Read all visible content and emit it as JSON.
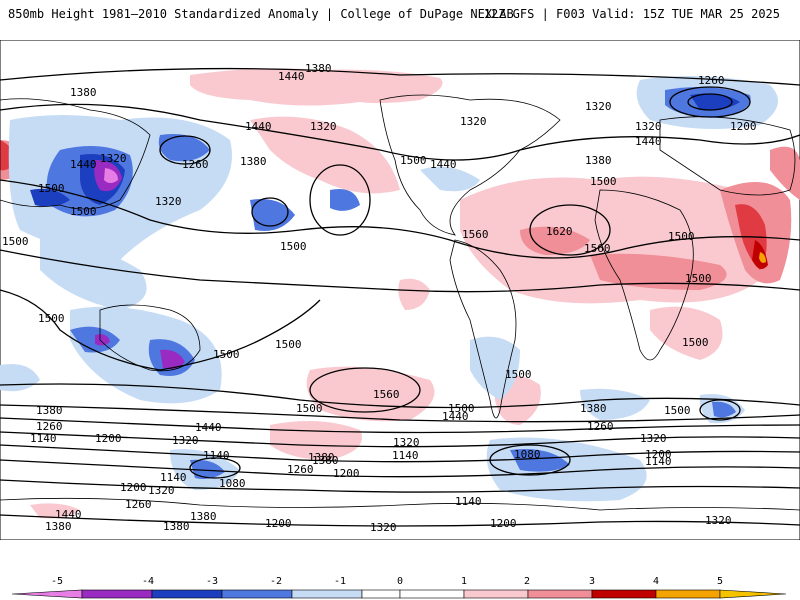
{
  "header": {
    "left_title": "850mb Height 1981–2010 Standardized Anomaly | College of DuPage NEXLAB",
    "right_title": "12Z GFS | F003 Valid: 15Z TUE MAR 25 2025"
  },
  "colors": {
    "neg5": "#e67ee6",
    "neg4": "#9a2bc2",
    "neg3": "#1c3fbf",
    "neg2": "#4f77e0",
    "neg1": "#c6dcf5",
    "pos1": "#f9c9cf",
    "pos2": "#f08f97",
    "pos3": "#e03a43",
    "pos4": "#c00000",
    "pos5": "#f5a300",
    "coast": "#000000"
  },
  "colorbar": {
    "ticks": [
      "-5",
      "-4",
      "-3",
      "-2",
      "-1",
      "0",
      "1",
      "2",
      "3",
      "4",
      "5"
    ]
  },
  "contour_labels": [
    "1380",
    "1440",
    "1380",
    "1440",
    "1320",
    "1440",
    "1500",
    "1320",
    "1260",
    "1380",
    "1500",
    "1320",
    "1500",
    "1440",
    "1500",
    "1500",
    "1560",
    "1620",
    "1560",
    "1500",
    "1500",
    "1500",
    "1440",
    "1320",
    "1260",
    "1200",
    "1320",
    "1500",
    "1380",
    "1500",
    "1500",
    "1500",
    "1560",
    "1500",
    "1440",
    "1440",
    "1380",
    "1260",
    "1140",
    "1200",
    "1320",
    "1380",
    "1320",
    "1200",
    "1140",
    "1260",
    "1380",
    "1320",
    "1200",
    "1140",
    "1140",
    "1080",
    "1200",
    "1320",
    "1260",
    "1380",
    "1440",
    "1200",
    "1140",
    "1320",
    "1080",
    "1140",
    "1200",
    "1260",
    "1320",
    "1500",
    "1500",
    "1500",
    "1320",
    "1380",
    "1380",
    "1380"
  ]
}
